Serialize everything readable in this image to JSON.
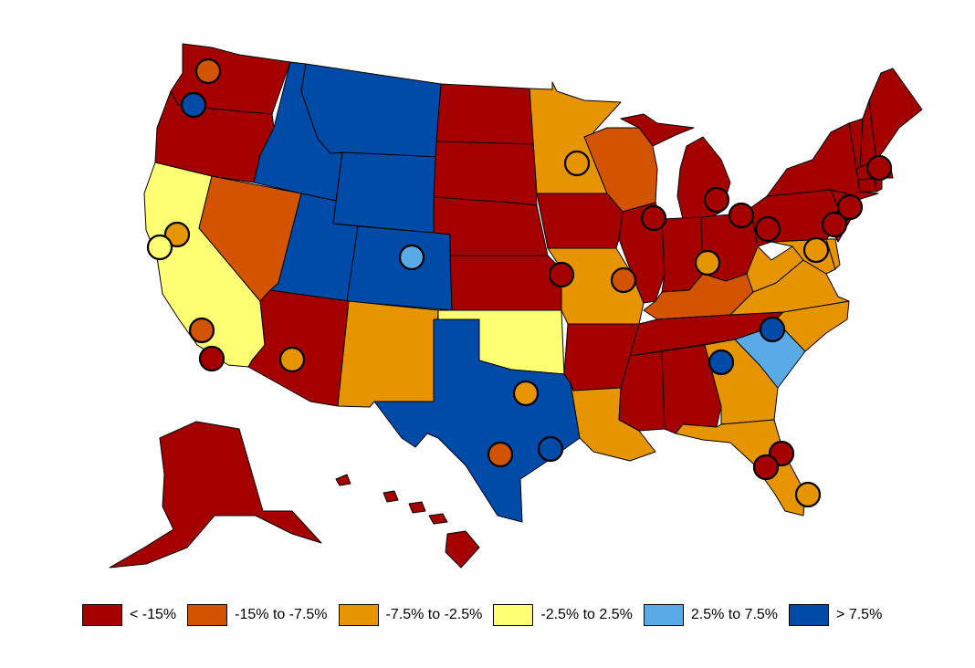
{
  "colors": {
    "lt_-15": "#a50000",
    "-15_-7.5": "#d35400",
    "-7.5_-2.5": "#e69500",
    "-2.5_2.5": "#ffff73",
    "2.5_7.5": "#5aaae6",
    "gt_7.5": "#004ba8"
  },
  "legend": [
    {
      "label": "< -15%",
      "color_key": "lt_-15"
    },
    {
      "label": "-15% to -7.5%",
      "color_key": "-15_-7.5"
    },
    {
      "label": "-7.5% to -2.5%",
      "color_key": "-7.5_-2.5"
    },
    {
      "label": "-2.5% to 2.5%",
      "color_key": "-2.5_2.5"
    },
    {
      "label": "2.5% to 7.5%",
      "color_key": "2.5_7.5"
    },
    {
      "label": "> 7.5%",
      "color_key": "gt_7.5"
    }
  ],
  "states": [
    {
      "id": "WA",
      "bin": "lt_-15"
    },
    {
      "id": "OR",
      "bin": "lt_-15"
    },
    {
      "id": "CA",
      "bin": "-2.5_2.5"
    },
    {
      "id": "NV",
      "bin": "-15_-7.5"
    },
    {
      "id": "ID",
      "bin": "gt_7.5"
    },
    {
      "id": "MT",
      "bin": "gt_7.5"
    },
    {
      "id": "WY",
      "bin": "gt_7.5"
    },
    {
      "id": "UT",
      "bin": "gt_7.5"
    },
    {
      "id": "CO",
      "bin": "gt_7.5"
    },
    {
      "id": "AZ",
      "bin": "lt_-15"
    },
    {
      "id": "NM",
      "bin": "-7.5_-2.5"
    },
    {
      "id": "TX",
      "bin": "gt_7.5"
    },
    {
      "id": "OK",
      "bin": "-2.5_2.5"
    },
    {
      "id": "KS",
      "bin": "lt_-15"
    },
    {
      "id": "NE",
      "bin": "lt_-15"
    },
    {
      "id": "SD",
      "bin": "lt_-15"
    },
    {
      "id": "ND",
      "bin": "lt_-15"
    },
    {
      "id": "MN",
      "bin": "-7.5_-2.5"
    },
    {
      "id": "IA",
      "bin": "lt_-15"
    },
    {
      "id": "MO",
      "bin": "-7.5_-2.5"
    },
    {
      "id": "AR",
      "bin": "lt_-15"
    },
    {
      "id": "LA",
      "bin": "-7.5_-2.5"
    },
    {
      "id": "WI",
      "bin": "-15_-7.5"
    },
    {
      "id": "IL",
      "bin": "lt_-15"
    },
    {
      "id": "MI",
      "bin": "lt_-15"
    },
    {
      "id": "IN",
      "bin": "lt_-15"
    },
    {
      "id": "OH",
      "bin": "lt_-15"
    },
    {
      "id": "KY",
      "bin": "-15_-7.5"
    },
    {
      "id": "TN",
      "bin": "lt_-15"
    },
    {
      "id": "MS",
      "bin": "lt_-15"
    },
    {
      "id": "AL",
      "bin": "lt_-15"
    },
    {
      "id": "GA",
      "bin": "-7.5_-2.5"
    },
    {
      "id": "FL",
      "bin": "-7.5_-2.5"
    },
    {
      "id": "SC",
      "bin": "2.5_7.5"
    },
    {
      "id": "NC",
      "bin": "-7.5_-2.5"
    },
    {
      "id": "VA",
      "bin": "-7.5_-2.5"
    },
    {
      "id": "WV",
      "bin": "-7.5_-2.5"
    },
    {
      "id": "MD",
      "bin": "-7.5_-2.5"
    },
    {
      "id": "DE",
      "bin": "-7.5_-2.5"
    },
    {
      "id": "PA",
      "bin": "lt_-15"
    },
    {
      "id": "NJ",
      "bin": "lt_-15"
    },
    {
      "id": "NY",
      "bin": "lt_-15"
    },
    {
      "id": "CT",
      "bin": "lt_-15"
    },
    {
      "id": "RI",
      "bin": "lt_-15"
    },
    {
      "id": "MA",
      "bin": "lt_-15"
    },
    {
      "id": "VT",
      "bin": "lt_-15"
    },
    {
      "id": "NH",
      "bin": "lt_-15"
    },
    {
      "id": "ME",
      "bin": "lt_-15"
    },
    {
      "id": "AK",
      "bin": "lt_-15"
    },
    {
      "id": "HI",
      "bin": "lt_-15"
    }
  ],
  "cities": [
    {
      "id": "seattle",
      "bin": "-15_-7.5"
    },
    {
      "id": "portland",
      "bin": "gt_7.5"
    },
    {
      "id": "sacramento",
      "bin": "-7.5_-2.5"
    },
    {
      "id": "san-francisco",
      "bin": "-2.5_2.5"
    },
    {
      "id": "los-angeles",
      "bin": "-15_-7.5"
    },
    {
      "id": "san-diego",
      "bin": "lt_-15"
    },
    {
      "id": "phoenix",
      "bin": "-7.5_-2.5"
    },
    {
      "id": "denver",
      "bin": "2.5_7.5"
    },
    {
      "id": "minneapolis",
      "bin": "-7.5_-2.5"
    },
    {
      "id": "kansas-city",
      "bin": "lt_-15"
    },
    {
      "id": "st-louis",
      "bin": "-15_-7.5"
    },
    {
      "id": "chicago",
      "bin": "lt_-15"
    },
    {
      "id": "detroit",
      "bin": "lt_-15"
    },
    {
      "id": "cleveland",
      "bin": "lt_-15"
    },
    {
      "id": "pittsburgh",
      "bin": "lt_-15"
    },
    {
      "id": "cincinnati",
      "bin": "-7.5_-2.5"
    },
    {
      "id": "dallas",
      "bin": "-7.5_-2.5"
    },
    {
      "id": "san-antonio",
      "bin": "-15_-7.5"
    },
    {
      "id": "houston",
      "bin": "gt_7.5"
    },
    {
      "id": "charlotte",
      "bin": "gt_7.5"
    },
    {
      "id": "atlanta",
      "bin": "gt_7.5"
    },
    {
      "id": "washington",
      "bin": "-7.5_-2.5"
    },
    {
      "id": "philadelphia",
      "bin": "lt_-15"
    },
    {
      "id": "new-york",
      "bin": "lt_-15"
    },
    {
      "id": "boston",
      "bin": "lt_-15"
    },
    {
      "id": "orlando",
      "bin": "lt_-15"
    },
    {
      "id": "tampa",
      "bin": "lt_-15"
    },
    {
      "id": "miami",
      "bin": "-7.5_-2.5"
    }
  ]
}
